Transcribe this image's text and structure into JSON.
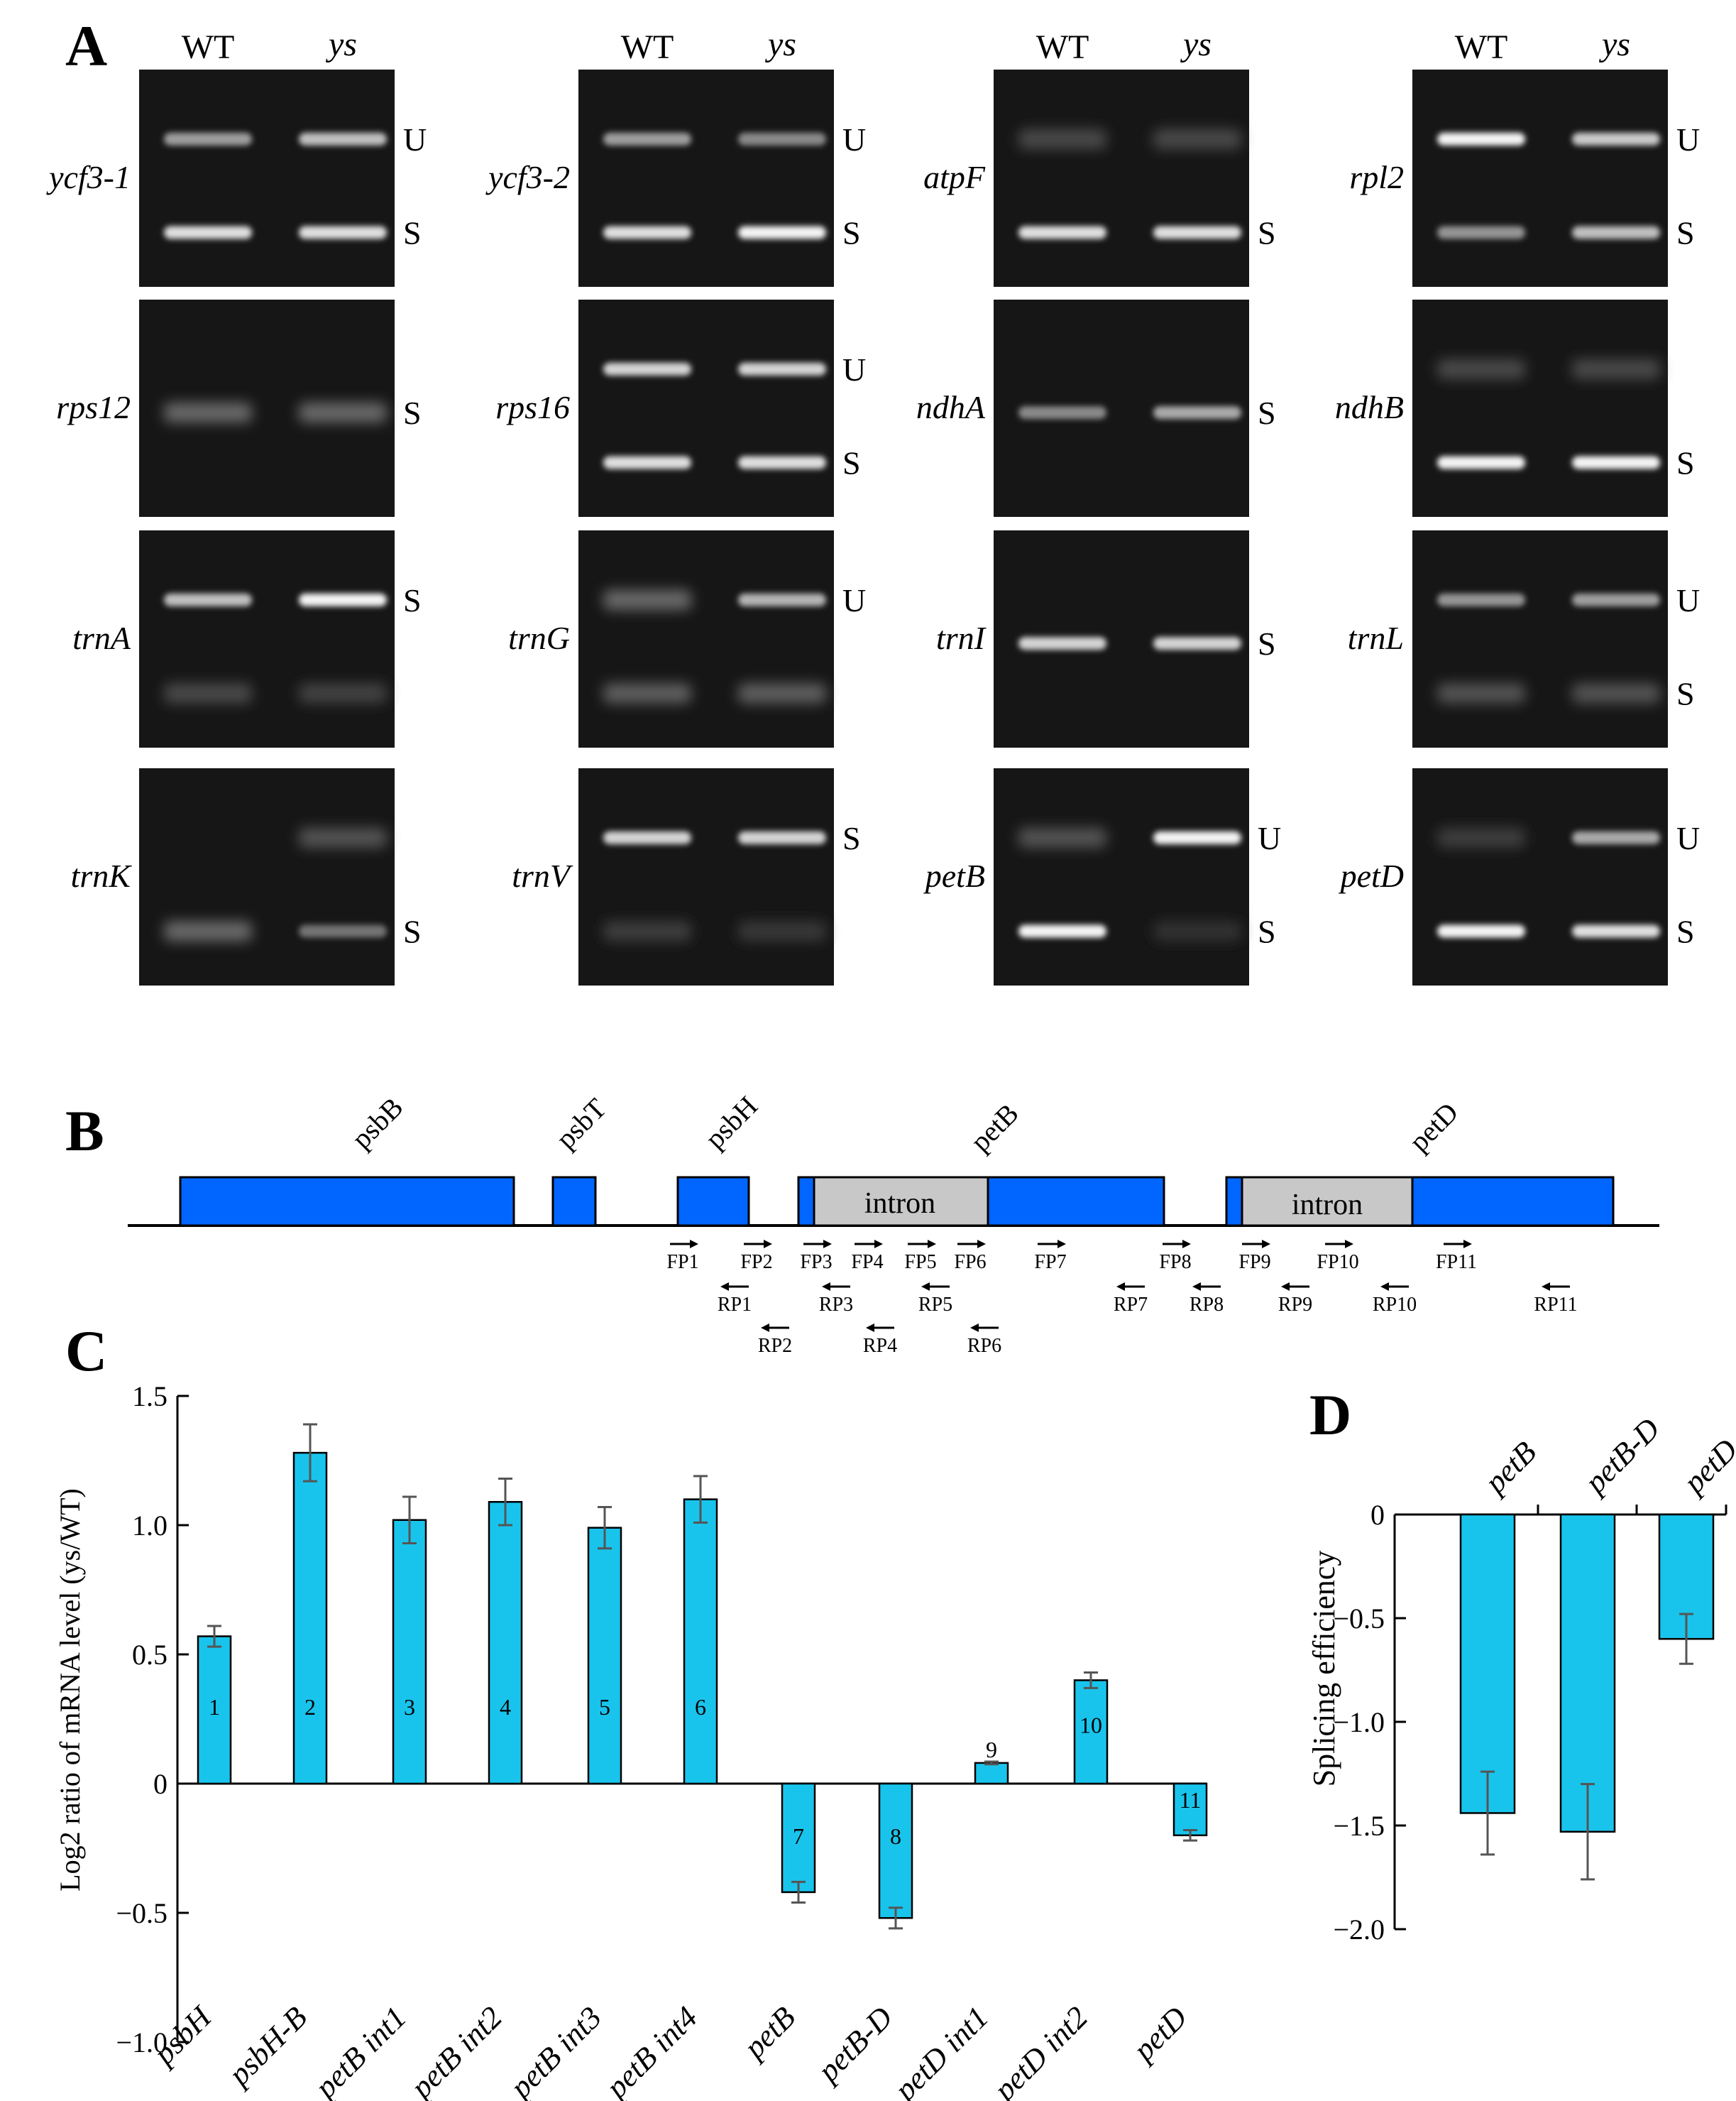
{
  "panel_labels": {
    "a": "A",
    "b": "B",
    "c": "C",
    "d": "D"
  },
  "gel": {
    "wt_label": "WT",
    "ys_label": "ys",
    "tiles": [
      {
        "gene": "ycf3-1",
        "bands": [
          {
            "label": "U",
            "wt": 0.55,
            "ys": 0.7
          },
          {
            "label": "S",
            "wt": 0.85,
            "ys": 0.85
          }
        ]
      },
      {
        "gene": "ycf3-2",
        "bands": [
          {
            "label": "U",
            "wt": 0.55,
            "ys": 0.45
          },
          {
            "label": "S",
            "wt": 0.85,
            "ys": 0.95
          }
        ]
      },
      {
        "gene": "atpF",
        "bands": [
          {
            "label": "",
            "wt": 0.15,
            "ys": 0.15
          },
          {
            "label": "S",
            "wt": 0.85,
            "ys": 0.85
          }
        ]
      },
      {
        "gene": "rpl2",
        "bands": [
          {
            "label": "U",
            "wt": 0.95,
            "ys": 0.75
          },
          {
            "label": "S",
            "wt": 0.5,
            "ys": 0.7
          }
        ]
      },
      {
        "gene": "rps12",
        "bands": [
          {
            "label": "S",
            "wt": 0.3,
            "ys": 0.3
          }
        ]
      },
      {
        "gene": "rps16",
        "bands": [
          {
            "label": "U",
            "wt": 0.8,
            "ys": 0.8
          },
          {
            "label": "S",
            "wt": 0.85,
            "ys": 0.85
          }
        ]
      },
      {
        "gene": "ndhA",
        "bands": [
          {
            "label": "S",
            "wt": 0.45,
            "ys": 0.6
          }
        ]
      },
      {
        "gene": "ndhB",
        "bands": [
          {
            "label": "",
            "wt": 0.15,
            "ys": 0.15
          },
          {
            "label": "S",
            "wt": 0.95,
            "ys": 0.95
          }
        ]
      },
      {
        "gene": "trnA",
        "bands": [
          {
            "label": "S",
            "wt": 0.7,
            "ys": 0.95
          },
          {
            "label": "",
            "wt": 0.15,
            "ys": 0.12
          }
        ]
      },
      {
        "gene": "trnG",
        "bands": [
          {
            "label": "U",
            "wt": 0.3,
            "ys": 0.65
          },
          {
            "label": "",
            "wt": 0.25,
            "ys": 0.25
          }
        ]
      },
      {
        "gene": "trnI",
        "bands": [
          {
            "label": "S",
            "wt": 0.8,
            "ys": 0.8
          }
        ]
      },
      {
        "gene": "trnL",
        "bands": [
          {
            "label": "U",
            "wt": 0.5,
            "ys": 0.55
          },
          {
            "label": "S",
            "wt": 0.2,
            "ys": 0.2
          }
        ]
      },
      {
        "gene": "trnK",
        "bands": [
          {
            "label": "",
            "wt": 0.0,
            "ys": 0.2
          },
          {
            "label": "S",
            "wt": 0.3,
            "ys": 0.35
          }
        ]
      },
      {
        "gene": "trnV",
        "bands": [
          {
            "label": "S",
            "wt": 0.8,
            "ys": 0.8
          },
          {
            "label": "",
            "wt": 0.1,
            "ys": 0.08
          }
        ]
      },
      {
        "gene": "petB",
        "bands": [
          {
            "label": "U",
            "wt": 0.2,
            "ys": 0.95
          },
          {
            "label": "S",
            "wt": 0.95,
            "ys": 0.05
          }
        ]
      },
      {
        "gene": "petD",
        "bands": [
          {
            "label": "U",
            "wt": 0.1,
            "ys": 0.6
          },
          {
            "label": "S",
            "wt": 0.95,
            "ys": 0.85
          }
        ]
      }
    ]
  },
  "gene_map": {
    "genes": [
      "psbB",
      "psbT",
      "psbH",
      "petB",
      "petD"
    ],
    "intron_label": "intron",
    "forward_primers": [
      "FP1",
      "FP2",
      "FP3",
      "FP4",
      "FP5",
      "FP6",
      "FP7",
      "FP8",
      "FP9",
      "FP10",
      "FP11"
    ],
    "reverse_primers": [
      "RP1",
      "RP2",
      "RP3",
      "RP4",
      "RP5",
      "RP6",
      "RP7",
      "RP8",
      "RP9",
      "RP10",
      "RP11"
    ]
  },
  "chart_data": [
    {
      "type": "bar",
      "panel": "C",
      "ylabel": "Log2 ratio of mRNA level (ys/WT)",
      "ylim": [
        -1.0,
        1.5
      ],
      "yticks": [
        "1.5",
        "1.0",
        "0.5",
        "0",
        "-0.5",
        "-1.0"
      ],
      "categories": [
        "psbH",
        "psbH-B",
        "petB int1",
        "petB int2",
        "petB int3",
        "petB int4",
        "petB",
        "petB-D",
        "petD int1",
        "petD int2",
        "petD"
      ],
      "values": [
        0.57,
        1.28,
        1.02,
        1.09,
        0.99,
        1.1,
        -0.42,
        -0.52,
        0.08,
        0.4,
        -0.2
      ],
      "errors": [
        0.04,
        0.11,
        0.09,
        0.09,
        0.08,
        0.09,
        0.04,
        0.04,
        0.005,
        0.03,
        0.02
      ],
      "bar_numbers": [
        "1",
        "2",
        "3",
        "4",
        "5",
        "6",
        "7",
        "8",
        "9",
        "10",
        "11"
      ],
      "bar_color": "#19c4ec"
    },
    {
      "type": "bar",
      "panel": "D",
      "ylabel": "Splicing efficiency",
      "ylim": [
        -2.0,
        0
      ],
      "yticks": [
        "0",
        "-0.5",
        "-1.0",
        "-1.5",
        "-2.0"
      ],
      "categories": [
        "petB",
        "petB-D",
        "petD"
      ],
      "values": [
        -1.44,
        -1.53,
        -0.6
      ],
      "errors": [
        0.2,
        0.23,
        0.12
      ],
      "bar_color": "#19c4ec"
    }
  ]
}
